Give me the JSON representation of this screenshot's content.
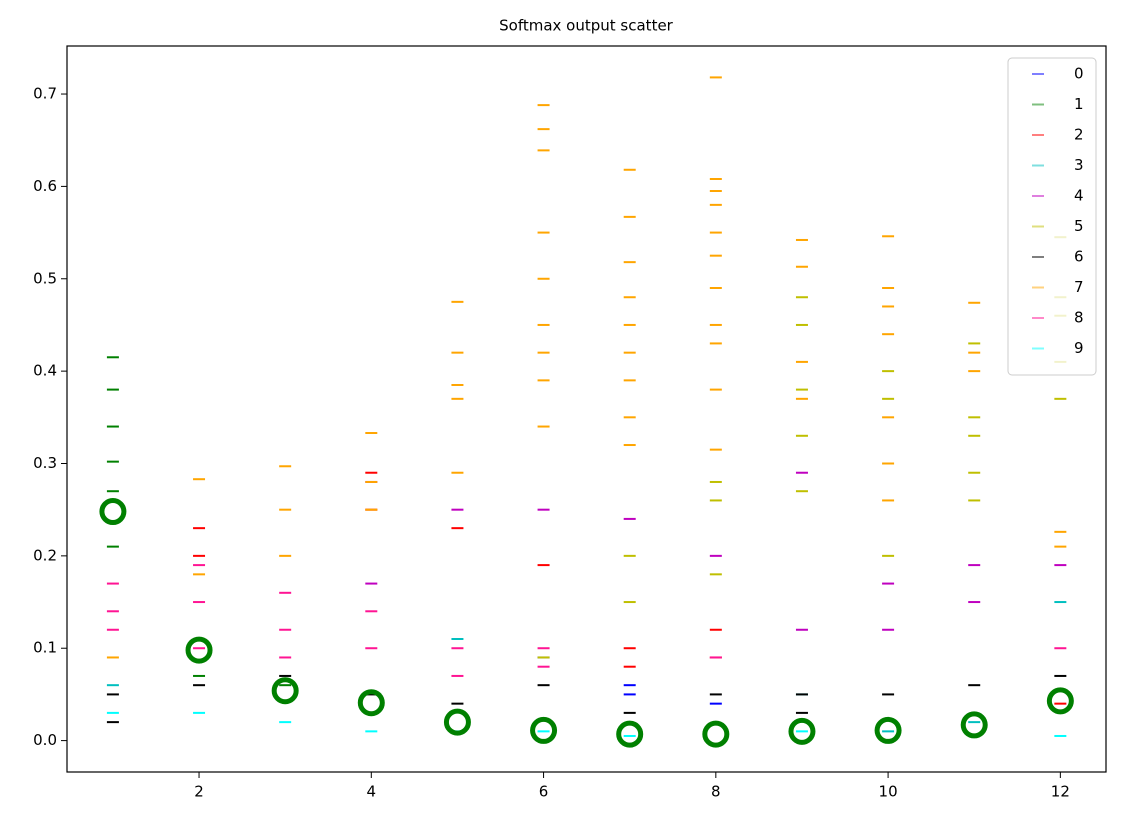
{
  "chart_data": {
    "type": "scatter",
    "title": "Softmax output scatter",
    "xlim": [
      0.467,
      12.53
    ],
    "ylim": [
      -0.034,
      0.752
    ],
    "xticks": [
      2,
      4,
      6,
      8,
      10,
      12
    ],
    "yticks": [
      {
        "value": 0,
        "label": "0.0"
      },
      0.1,
      0.2,
      0.3,
      0.4,
      0.5,
      0.6,
      0.7
    ],
    "legend": "upper right",
    "series": [
      {
        "name": "0",
        "color": "#0000ff",
        "x": [
          6,
          7,
          7,
          8
        ],
        "y": [
          0.09,
          0.06,
          0.05,
          0.04
        ]
      },
      {
        "name": "1",
        "color": "#008000",
        "x": [
          1,
          1,
          1,
          1,
          1,
          1,
          2,
          3
        ],
        "y": [
          0.415,
          0.38,
          0.34,
          0.302,
          0.27,
          0.21,
          0.07,
          0.06
        ]
      },
      {
        "name": "2",
        "color": "#ff0000",
        "x": [
          2,
          2,
          4,
          4,
          5,
          6,
          7,
          7,
          8,
          8,
          12
        ],
        "y": [
          0.23,
          0.2,
          0.29,
          0.25,
          0.23,
          0.19,
          0.1,
          0.08,
          0.12,
          0.09,
          0.04
        ]
      },
      {
        "name": "3",
        "color": "#00bfbf",
        "x": [
          1,
          5,
          9,
          10,
          11,
          12
        ],
        "y": [
          0.06,
          0.11,
          0.05,
          0.01,
          0.02,
          0.15
        ]
      },
      {
        "name": "4",
        "color": "#bf00bf",
        "x": [
          4,
          4,
          5,
          6,
          7,
          8,
          9,
          9,
          10,
          10,
          11,
          11,
          12
        ],
        "y": [
          0.28,
          0.17,
          0.25,
          0.25,
          0.24,
          0.2,
          0.29,
          0.12,
          0.17,
          0.12,
          0.19,
          0.15,
          0.19
        ]
      },
      {
        "name": "5",
        "color": "#bfbf00",
        "x": [
          6,
          7,
          7,
          8,
          8,
          8,
          9,
          9,
          9,
          9,
          9,
          10,
          10,
          10,
          11,
          11,
          11,
          11,
          11,
          12,
          12,
          12,
          12,
          12
        ],
        "y": [
          0.09,
          0.2,
          0.15,
          0.28,
          0.26,
          0.18,
          0.48,
          0.45,
          0.38,
          0.33,
          0.27,
          0.4,
          0.37,
          0.2,
          0.43,
          0.35,
          0.33,
          0.29,
          0.26,
          0.545,
          0.48,
          0.46,
          0.41,
          0.37
        ]
      },
      {
        "name": "6",
        "color": "#000000",
        "x": [
          1,
          1,
          2,
          3,
          4,
          5,
          6,
          7,
          8,
          9,
          9,
          10,
          11,
          12
        ],
        "y": [
          0.05,
          0.02,
          0.06,
          0.07,
          0.05,
          0.04,
          0.06,
          0.03,
          0.05,
          0.05,
          0.03,
          0.05,
          0.06,
          0.07
        ]
      },
      {
        "name": "7",
        "color": "#ffa500",
        "x": [
          1,
          2,
          2,
          3,
          3,
          3,
          4,
          4,
          4,
          5,
          5,
          5,
          5,
          5,
          6,
          6,
          6,
          6,
          6,
          6,
          6,
          6,
          6,
          7,
          7,
          7,
          7,
          7,
          7,
          7,
          7,
          7,
          8,
          8,
          8,
          8,
          8,
          8,
          8,
          8,
          8,
          8,
          8,
          9,
          9,
          9,
          9,
          10,
          10,
          10,
          10,
          10,
          10,
          10,
          11,
          11,
          11,
          12,
          12
        ],
        "y": [
          0.09,
          0.283,
          0.18,
          0.297,
          0.25,
          0.2,
          0.333,
          0.28,
          0.25,
          0.475,
          0.42,
          0.385,
          0.37,
          0.29,
          0.688,
          0.662,
          0.639,
          0.55,
          0.5,
          0.45,
          0.42,
          0.39,
          0.34,
          0.618,
          0.567,
          0.518,
          0.48,
          0.45,
          0.42,
          0.39,
          0.35,
          0.32,
          0.718,
          0.608,
          0.595,
          0.58,
          0.55,
          0.525,
          0.49,
          0.45,
          0.43,
          0.38,
          0.315,
          0.542,
          0.513,
          0.41,
          0.37,
          0.546,
          0.49,
          0.47,
          0.44,
          0.35,
          0.3,
          0.26,
          0.474,
          0.42,
          0.4,
          0.226,
          0.21
        ]
      },
      {
        "name": "8",
        "color": "#ff1493",
        "x": [
          1,
          1,
          1,
          2,
          2,
          2,
          3,
          3,
          3,
          4,
          4,
          5,
          5,
          6,
          6,
          8,
          12
        ],
        "y": [
          0.17,
          0.14,
          0.12,
          0.19,
          0.15,
          0.1,
          0.16,
          0.12,
          0.09,
          0.14,
          0.1,
          0.1,
          0.07,
          0.1,
          0.08,
          0.09,
          0.1
        ]
      },
      {
        "name": "9",
        "color": "#00ffff",
        "x": [
          1,
          2,
          3,
          4,
          5,
          6,
          7,
          9,
          12
        ],
        "y": [
          0.03,
          0.03,
          0.02,
          0.01,
          0.01,
          0.01,
          0.005,
          0.01,
          0.005
        ]
      }
    ],
    "highlights": {
      "color": "#008000",
      "x": [
        1,
        2,
        3,
        4,
        5,
        6,
        7,
        8,
        9,
        10,
        11,
        12
      ],
      "y": [
        0.248,
        0.098,
        0.054,
        0.041,
        0.02,
        0.011,
        0.007,
        0.007,
        0.01,
        0.011,
        0.017,
        0.043
      ]
    }
  }
}
